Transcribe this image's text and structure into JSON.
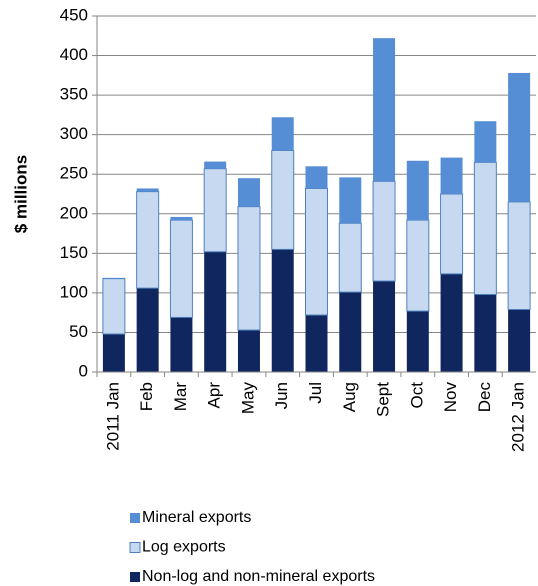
{
  "chart_data": {
    "type": "stacked-bar",
    "ylabel": "$ millions",
    "categories": [
      "2011 Jan",
      "Feb",
      "Mar",
      "Apr",
      "May",
      "Jun",
      "Jul",
      "Aug",
      "Sept",
      "Oct",
      "Nov",
      "Dec",
      "2012 Jan"
    ],
    "series": [
      {
        "name": "Non-log and non-mineral exports",
        "color": "#10265e",
        "values": [
          48,
          106,
          69,
          152,
          53,
          155,
          72,
          101,
          115,
          77,
          124,
          98,
          79
        ]
      },
      {
        "name": "Log exports",
        "color": "#c6d9f1",
        "values": [
          70,
          122,
          123,
          105,
          156,
          125,
          160,
          87,
          126,
          115,
          101,
          167,
          136
        ]
      },
      {
        "name": "Mineral exports",
        "color": "#558ed5",
        "values": [
          1,
          4,
          4,
          9,
          36,
          42,
          28,
          58,
          181,
          75,
          46,
          52,
          163
        ]
      }
    ],
    "ylim": [
      0,
      450
    ],
    "yticks": [
      0,
      50,
      100,
      150,
      200,
      250,
      300,
      350,
      400,
      450
    ],
    "grid": true
  }
}
